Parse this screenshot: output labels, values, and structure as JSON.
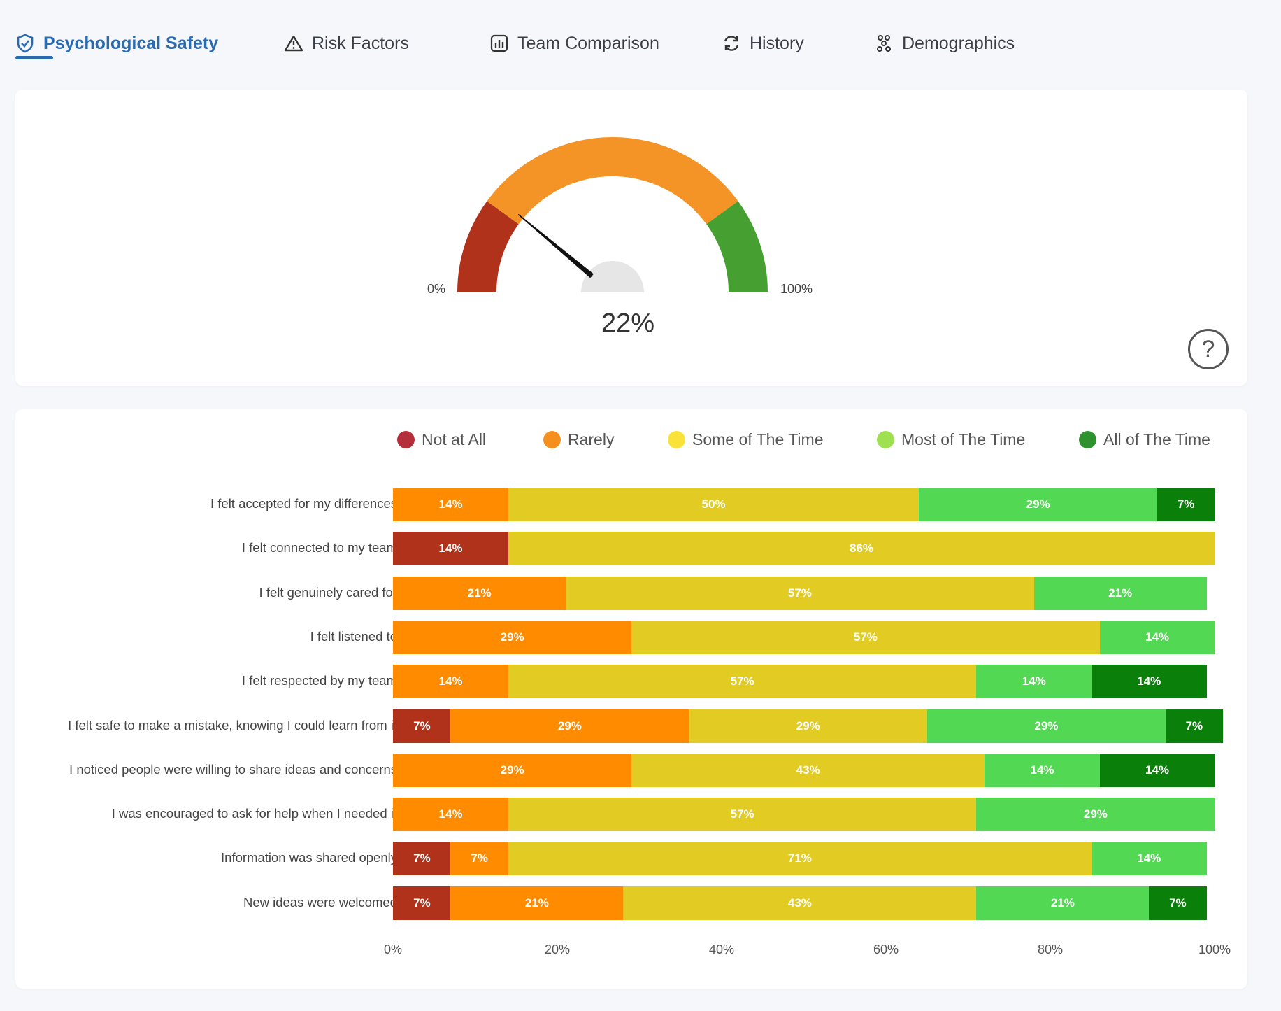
{
  "tabs": [
    {
      "label": "Psychological Safety",
      "icon": "shield-check-icon",
      "active": true
    },
    {
      "label": "Risk Factors",
      "icon": "warning-triangle-icon",
      "active": false
    },
    {
      "label": "Team Comparison",
      "icon": "bar-chart-icon",
      "active": false
    },
    {
      "label": "History",
      "icon": "refresh-icon",
      "active": false
    },
    {
      "label": "Demographics",
      "icon": "people-group-icon",
      "active": false
    }
  ],
  "gauge": {
    "value": 22,
    "value_label": "22%",
    "min_label": "0%",
    "max_label": "100%",
    "bands": [
      {
        "from": 0,
        "to": 20,
        "color": "#b0321b"
      },
      {
        "from": 20,
        "to": 80,
        "color": "#f59426"
      },
      {
        "from": 80,
        "to": 100,
        "color": "#46a031"
      }
    ],
    "help_label": "?"
  },
  "colors": {
    "accent": "#2a6bb0",
    "not_at_all": "#b0321b",
    "rarely": "#ff8c00",
    "some": "#e2cb22",
    "most": "#52d852",
    "all": "#0a7f0a"
  },
  "chart_data": {
    "type": "bar",
    "orientation": "horizontal",
    "stacked": true,
    "legend_position": "top",
    "xlim": [
      0,
      100
    ],
    "x_ticks": [
      "0%",
      "20%",
      "40%",
      "60%",
      "80%",
      "100%"
    ],
    "categories": [
      "I felt accepted for my differences",
      "I felt connected to my team",
      "I felt genuinely cared for",
      "I felt listened to",
      "I felt respected by my team",
      "I felt safe to make a mistake, knowing I could learn from it",
      "I noticed people were willing to share ideas and concerns",
      "I was encouraged to ask for help when I needed it",
      "Information was shared openly",
      "New ideas were welcomed"
    ],
    "series": [
      {
        "name": "Not at All",
        "color": "#b0321b",
        "legend_color": "#b5303b",
        "values": [
          0,
          14,
          0,
          0,
          0,
          7,
          0,
          0,
          7,
          7
        ]
      },
      {
        "name": "Rarely",
        "color": "#ff8c00",
        "legend_color": "#f5901e",
        "values": [
          14,
          0,
          21,
          29,
          14,
          29,
          29,
          14,
          7,
          21
        ]
      },
      {
        "name": "Some of The Time",
        "color": "#e2cb22",
        "legend_color": "#fbe23a",
        "values": [
          50,
          86,
          57,
          57,
          57,
          29,
          43,
          57,
          71,
          43
        ]
      },
      {
        "name": "Most of The Time",
        "color": "#52d852",
        "legend_color": "#9ee04f",
        "values": [
          29,
          0,
          21,
          14,
          14,
          29,
          14,
          29,
          14,
          21
        ]
      },
      {
        "name": "All of The Time",
        "color": "#0a7f0a",
        "legend_color": "#2e922e",
        "values": [
          7,
          0,
          0,
          0,
          14,
          7,
          14,
          0,
          0,
          7
        ]
      }
    ],
    "labels": [
      [
        "",
        "14%",
        "50%",
        "29%",
        "7%"
      ],
      [
        "14%",
        "",
        "86%",
        "",
        ""
      ],
      [
        "",
        "21%",
        "57%",
        "21%",
        ""
      ],
      [
        "",
        "29%",
        "57%",
        "14%",
        ""
      ],
      [
        "",
        "14%",
        "57%",
        "14%",
        "14%"
      ],
      [
        "7%",
        "29%",
        "29%",
        "29%",
        "7%"
      ],
      [
        "",
        "29%",
        "43%",
        "14%",
        "14%"
      ],
      [
        "",
        "14%",
        "57%",
        "29%",
        ""
      ],
      [
        "7%",
        "7%",
        "71%",
        "14%",
        ""
      ],
      [
        "7%",
        "21%",
        "43%",
        "21%",
        "7%"
      ]
    ]
  }
}
